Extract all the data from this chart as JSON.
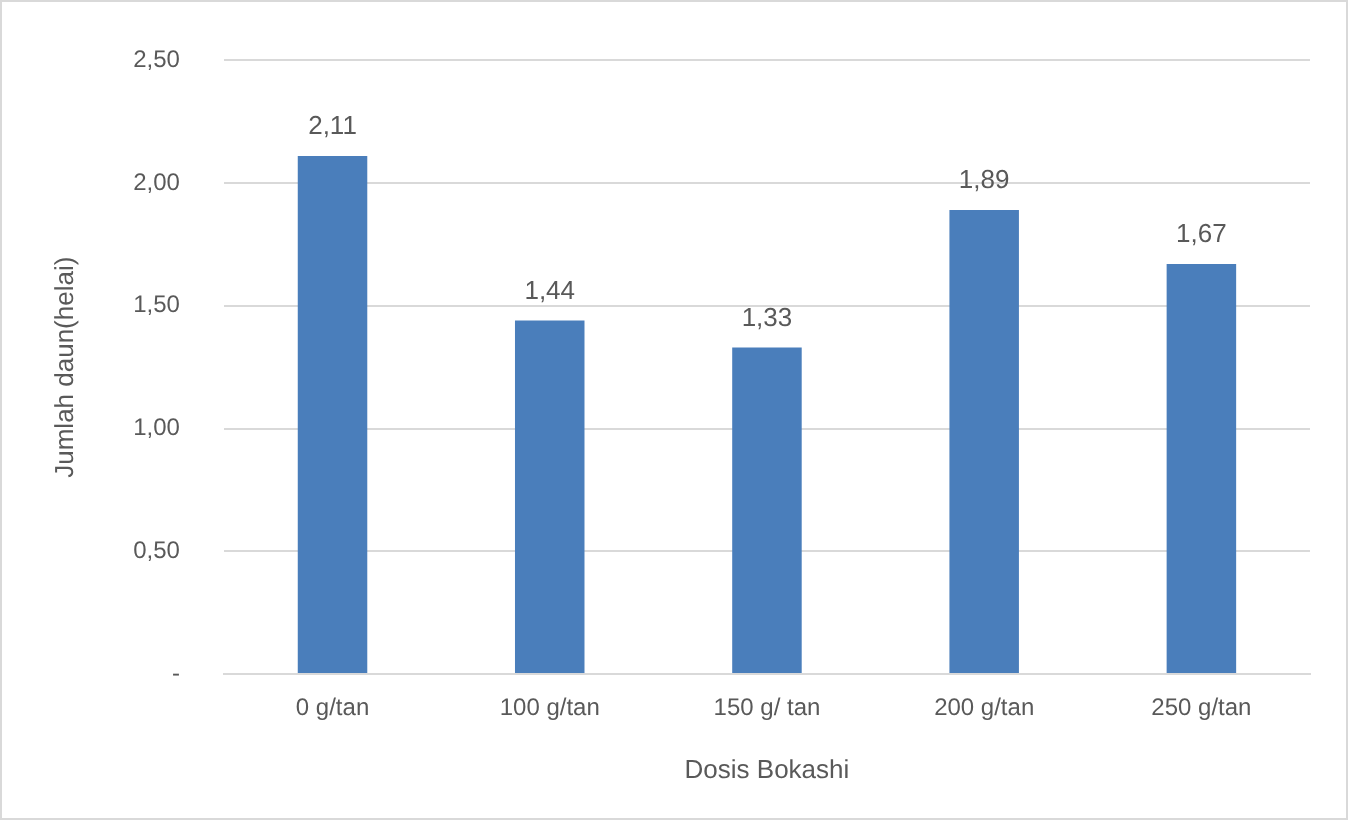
{
  "chart_data": {
    "type": "bar",
    "xlabel": "Dosis Bokashi",
    "ylabel": "Jumlah daun(helai)",
    "categories": [
      "0 g/tan",
      "100 g/tan",
      "150 g/ tan",
      "200 g/tan",
      "250 g/tan"
    ],
    "values": [
      2.11,
      1.44,
      1.33,
      1.89,
      1.67
    ],
    "value_labels": [
      "2,11",
      "1,44",
      "1,33",
      "1,89",
      "1,67"
    ],
    "color": "#4a7ebb",
    "ylim": [
      0,
      2.5
    ],
    "yticks": [
      {
        "value": 0,
        "label": "-"
      },
      {
        "value": 0.5,
        "label": "0,50"
      },
      {
        "value": 1,
        "label": "1,00"
      },
      {
        "value": 1.5,
        "label": "1,50"
      },
      {
        "value": 2,
        "label": "2,00"
      },
      {
        "value": 2.5,
        "label": "2,50"
      }
    ],
    "grid": "y",
    "legend": false
  }
}
